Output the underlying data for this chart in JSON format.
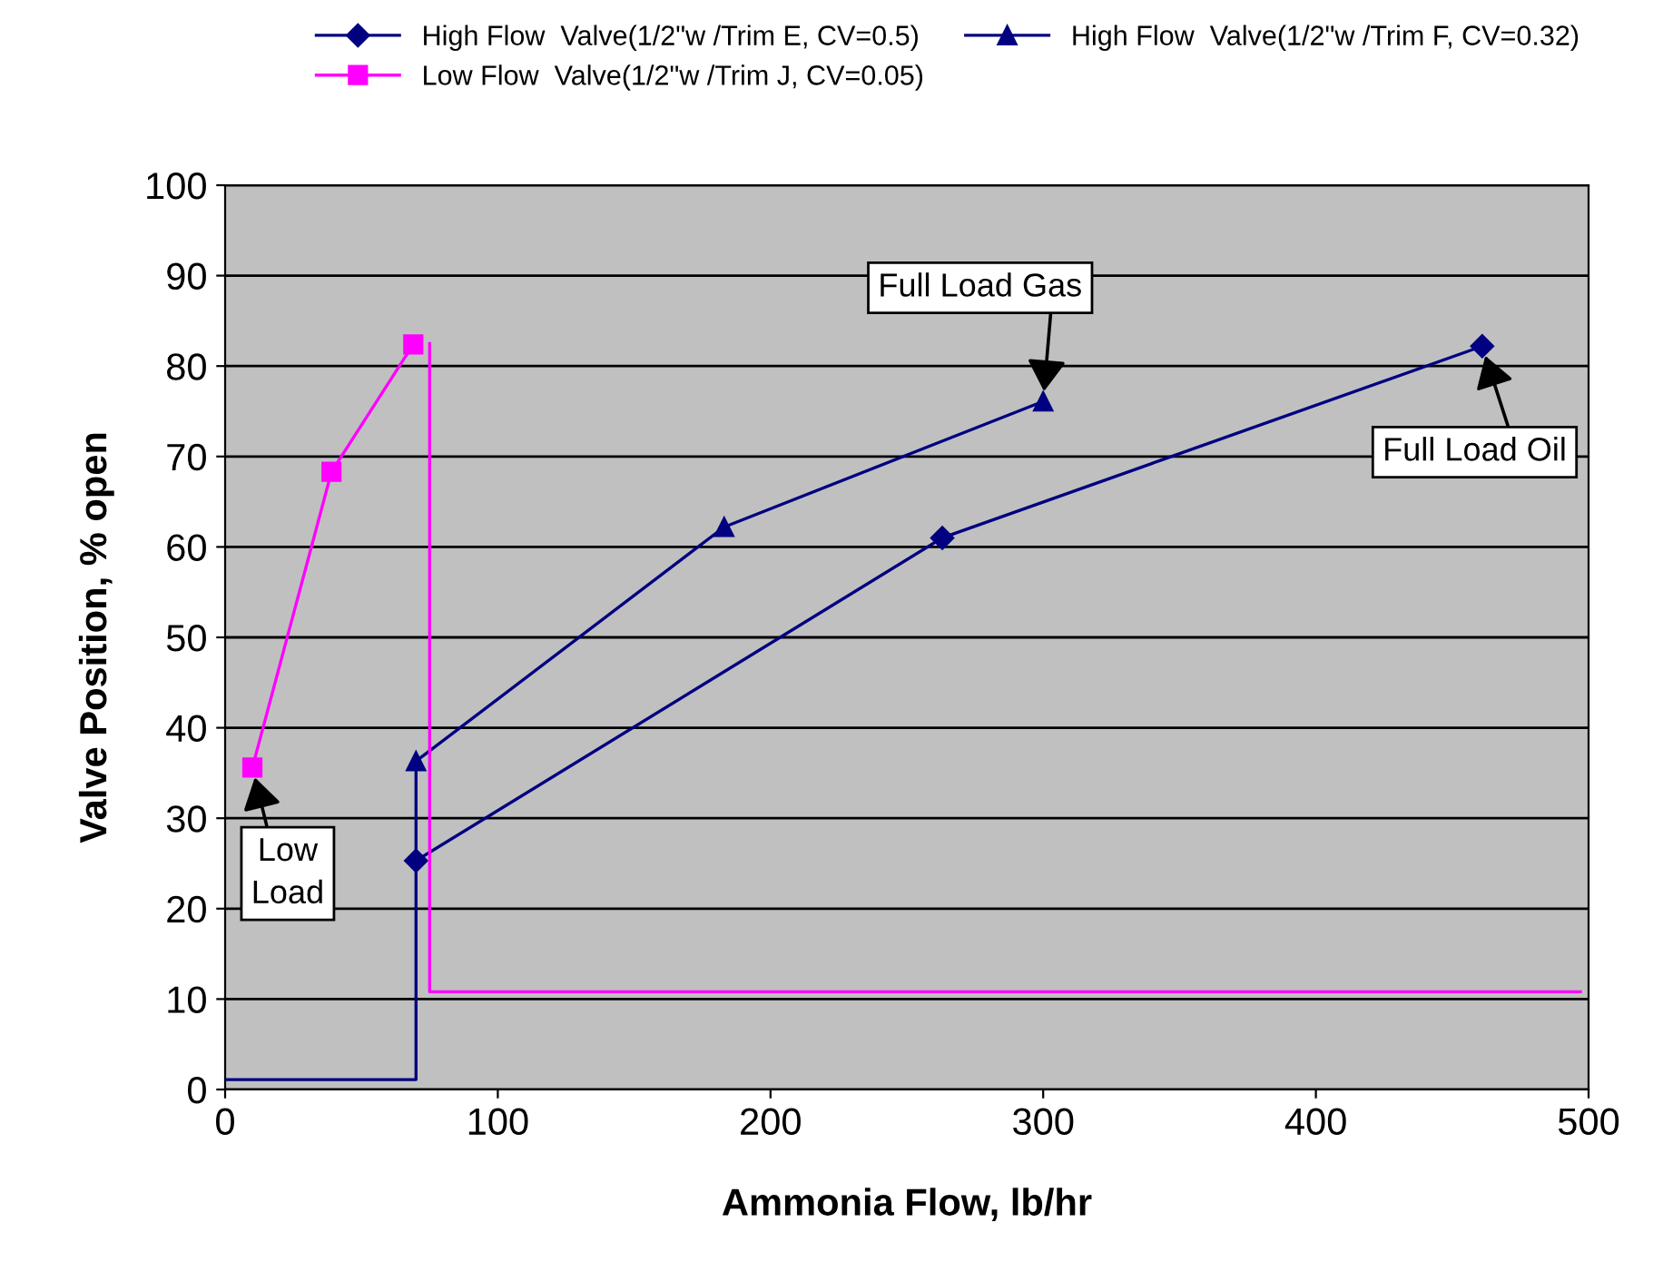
{
  "chart_data": {
    "type": "line",
    "xlabel": "Ammonia Flow, lb/hr",
    "ylabel": "Valve Position, % open",
    "xlim": [
      0,
      500
    ],
    "xticks": [
      0,
      100,
      200,
      300,
      400,
      500
    ],
    "ylim": [
      0,
      100
    ],
    "yticks": [
      0,
      10,
      20,
      30,
      40,
      50,
      60,
      70,
      80,
      90,
      100
    ],
    "grid": "y",
    "legend": "top",
    "line_style": "solid",
    "series": [
      {
        "name": "High Flow  Valve(1/2\"w /Trim E, CV=0.5)",
        "color": "#000080",
        "marker": "diamond",
        "x": [
          70,
          263,
          461
        ],
        "values": [
          25.3,
          61,
          82.2
        ]
      },
      {
        "name": "High Flow  Valve(1/2\"w /Trim F, CV=0.32)",
        "color": "#000080",
        "marker": "triangle",
        "x": [
          70,
          183,
          300
        ],
        "values": [
          36.3,
          62.2,
          76.1
        ]
      },
      {
        "name": "Low Flow  Valve(1/2\"w /Trim J, CV=0.05)",
        "color": "#ff00ff",
        "marker": "square",
        "x": [
          10,
          39,
          69
        ],
        "values": [
          35.6,
          68.3,
          82.4
        ]
      },
      {
        "color": "#000080",
        "marker": "none",
        "x": [
          0,
          70,
          70
        ],
        "values": [
          1.1,
          1.1,
          36.3
        ]
      },
      {
        "color": "#ff00ff",
        "marker": "none",
        "x": [
          75,
          75,
          497
        ],
        "values": [
          82.5,
          10.8,
          10.8
        ]
      }
    ],
    "annotations": [
      {
        "text": "Low\nLoad",
        "x": 10,
        "y": 35.6
      },
      {
        "text": "Full Load Gas",
        "x": 300,
        "y": 76.1
      },
      {
        "text": "Full Load Oil",
        "x": 461,
        "y": 82.2
      }
    ]
  }
}
